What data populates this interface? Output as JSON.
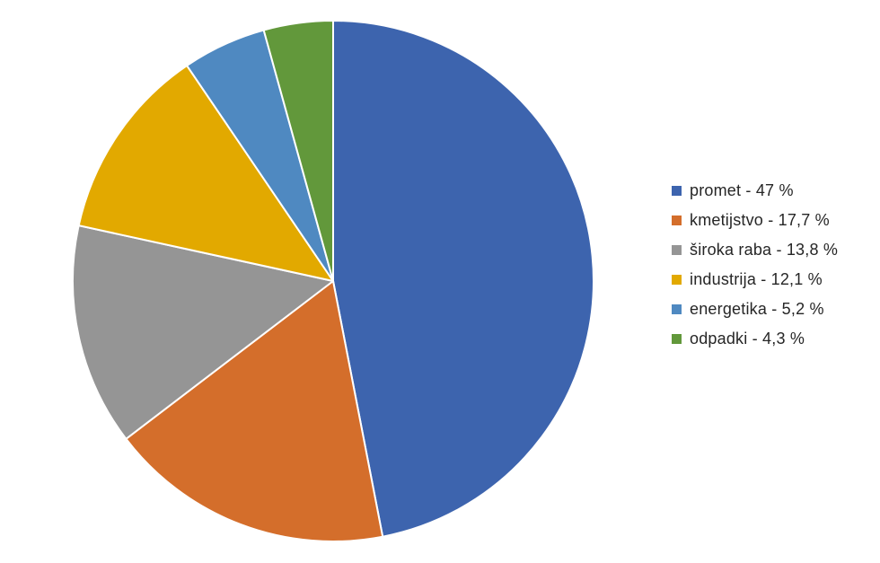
{
  "chart_data": {
    "type": "pie",
    "title": "",
    "start_angle_deg": 0,
    "direction": "clockwise",
    "legend_position": "right",
    "slices": [
      {
        "category": "promet",
        "value": 47.0,
        "label": "promet - 47 %",
        "color": "#3D64AE"
      },
      {
        "category": "kmetijstvo",
        "value": 17.7,
        "label": "kmetijstvo - 17,7 %",
        "color": "#D46E2B"
      },
      {
        "category": "široka raba",
        "value": 13.8,
        "label": "široka raba - 13,8 %",
        "color": "#959595"
      },
      {
        "category": "industrija",
        "value": 12.1,
        "label": "industrija - 12,1 %",
        "color": "#E2A900"
      },
      {
        "category": "energetika",
        "value": 5.2,
        "label": "energetika - 5,2 %",
        "color": "#4F89C1"
      },
      {
        "category": "odpadki",
        "value": 4.3,
        "label": "odpadki - 4,3 %",
        "color": "#62983B"
      }
    ]
  }
}
